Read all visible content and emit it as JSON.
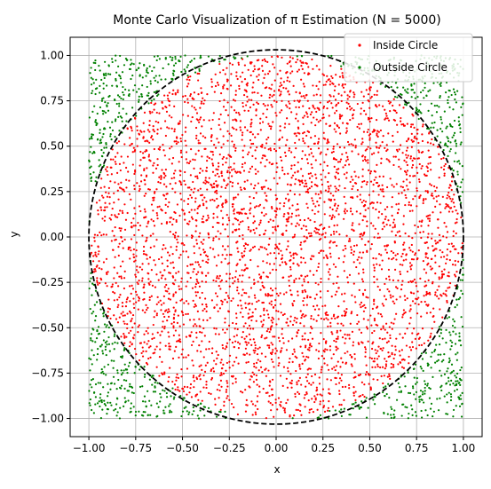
{
  "chart_data": {
    "type": "scatter",
    "title": "Monte Carlo Visualization of π Estimation (N = 5000)",
    "xlabel": "x",
    "ylabel": "y",
    "xlim": [
      -1.1,
      1.1
    ],
    "ylim": [
      -1.1,
      1.1
    ],
    "xticks": [
      -1.0,
      -0.75,
      -0.5,
      -0.25,
      0.0,
      0.25,
      0.5,
      0.75,
      1.0
    ],
    "yticks": [
      -1.0,
      -0.75,
      -0.5,
      -0.25,
      0.0,
      0.25,
      0.5,
      0.75,
      1.0
    ],
    "xtick_labels": [
      "−1.00",
      "−0.75",
      "−0.50",
      "−0.25",
      "0.00",
      "0.25",
      "0.50",
      "0.75",
      "1.00"
    ],
    "ytick_labels": [
      "−1.00",
      "−0.75",
      "−0.50",
      "−0.25",
      "0.00",
      "0.25",
      "0.50",
      "0.75",
      "1.00"
    ],
    "grid": true,
    "legend_position": "top-right",
    "n_points": 5000,
    "point_domain": {
      "x": [
        -1,
        1
      ],
      "y": [
        -1,
        1
      ]
    },
    "circle": {
      "center": [
        0,
        0
      ],
      "radius": 1,
      "style": "dashed",
      "color": "#000000"
    },
    "series": [
      {
        "name": "Inside Circle",
        "color": "#ff0000",
        "rule": "x^2 + y^2 <= 1"
      },
      {
        "name": "Outside Circle",
        "color": "#008000",
        "rule": "x^2 + y^2 > 1"
      }
    ]
  }
}
